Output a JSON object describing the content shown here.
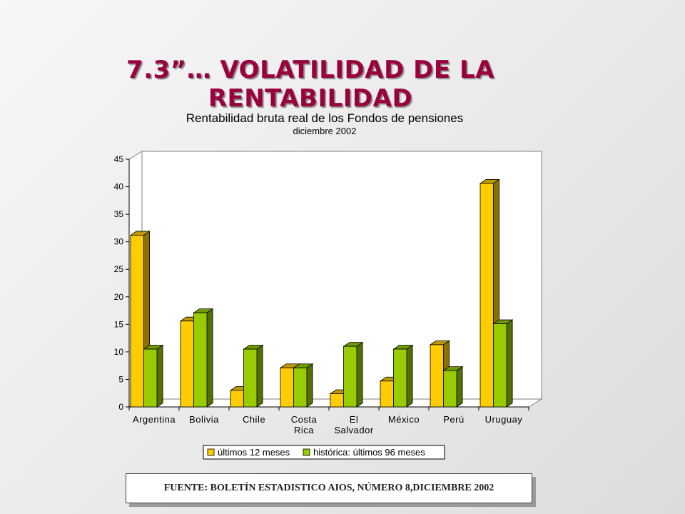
{
  "slide": {
    "title_line1": "7.3”… VOLATILIDAD DE LA",
    "title_line2": "RENTABILIDAD",
    "source": "FUENTE: BOLETÍN ESTADISTICO AIOS, NÚMERO 8,DICIEMBRE 2002"
  },
  "chart_data": {
    "type": "bar",
    "title": "Rentabilidad bruta real de los Fondos de pensiones",
    "subtitle": "diciembre 2002",
    "categories": [
      "Argentina",
      "Bolivia",
      "Chile",
      "Costa Rica",
      "El Salvador",
      "México",
      "Perú",
      "Uruguay"
    ],
    "category_lines": [
      [
        "Argentina"
      ],
      [
        "Bolivia"
      ],
      [
        "Chile"
      ],
      [
        "Costa",
        "Rica"
      ],
      [
        "El",
        "Salvador"
      ],
      [
        "México"
      ],
      [
        "Perú"
      ],
      [
        "Uruguay"
      ]
    ],
    "series": [
      {
        "name": "últimos 12 meses",
        "values": [
          31.2,
          15.6,
          3.0,
          7.1,
          2.4,
          4.7,
          11.3,
          40.6
        ],
        "color": "#ffcc00"
      },
      {
        "name": "histórica: últimos 96 meses",
        "values": [
          10.5,
          17.1,
          10.5,
          7.1,
          11.0,
          10.5,
          6.6,
          15.1
        ],
        "color": "#99cc00"
      }
    ],
    "ylim": [
      0,
      45
    ],
    "yticks": [
      0,
      5,
      10,
      15,
      20,
      25,
      30,
      35,
      40,
      45
    ],
    "three_d": true,
    "legend_position": "bottom",
    "grid": false
  }
}
